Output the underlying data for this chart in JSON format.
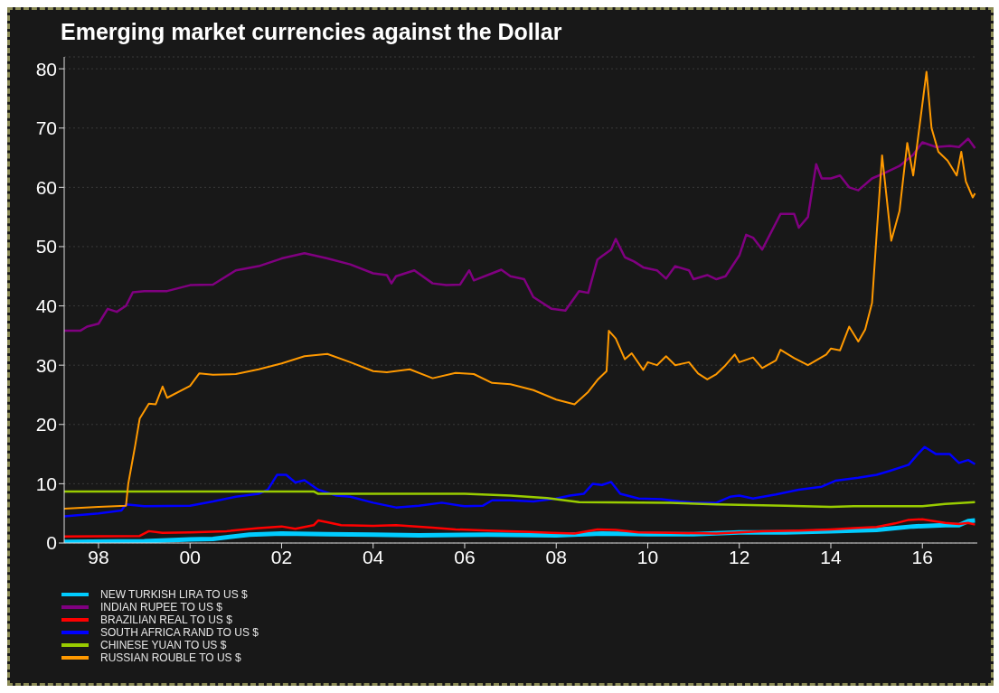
{
  "chart_data": {
    "type": "line",
    "title": "Emerging market currencies against the Dollar",
    "xlim": [
      1997.25,
      2017.2
    ],
    "xticks": [
      {
        "value": 1998,
        "label": "98"
      },
      {
        "value": 2000,
        "label": "00"
      },
      {
        "value": 2002,
        "label": "02"
      },
      {
        "value": 2004,
        "label": "04"
      },
      {
        "value": 2006,
        "label": "06"
      },
      {
        "value": 2008,
        "label": "08"
      },
      {
        "value": 2010,
        "label": "10"
      },
      {
        "value": 2012,
        "label": "12"
      },
      {
        "value": 2014,
        "label": "14"
      },
      {
        "value": 2016,
        "label": "16"
      }
    ],
    "ylim": [
      0,
      82
    ],
    "yticks": [
      0,
      10,
      20,
      30,
      40,
      50,
      60,
      70,
      80
    ],
    "grid": "y",
    "legend": "bottom left",
    "marker": "none",
    "line_style": "solid",
    "series": [
      {
        "name": "NEW TURKISH LIRA TO US $",
        "color": "#00ccff",
        "x": [
          1997.25,
          1999.0,
          2000.0,
          2000.5,
          2001.3,
          2002.0,
          2003.0,
          2004.0,
          2005.0,
          2006.5,
          2008.0,
          2009.0,
          2010.0,
          2011.0,
          2012.0,
          2013.0,
          2014.0,
          2015.0,
          2015.8,
          2016.5,
          2016.8,
          2017.0,
          2017.15
        ],
        "values": [
          0.2,
          0.3,
          0.6,
          0.7,
          1.4,
          1.6,
          1.5,
          1.4,
          1.3,
          1.4,
          1.3,
          1.6,
          1.5,
          1.5,
          1.8,
          1.8,
          2.0,
          2.2,
          2.8,
          3.0,
          3.0,
          3.7,
          3.8
        ]
      },
      {
        "name": "INDIAN RUPEE TO US $",
        "color": "#800080",
        "x": [
          1997.25,
          1997.6,
          1997.75,
          1998.0,
          1998.2,
          1998.4,
          1998.6,
          1998.75,
          1999.0,
          1999.5,
          2000.0,
          2000.5,
          2001.0,
          2001.5,
          2002.0,
          2002.5,
          2003.0,
          2003.5,
          2004.0,
          2004.3,
          2004.4,
          2004.5,
          2004.9,
          2005.3,
          2005.6,
          2005.9,
          2006.1,
          2006.2,
          2006.6,
          2006.8,
          2007.0,
          2007.3,
          2007.5,
          2007.9,
          2008.2,
          2008.5,
          2008.7,
          2008.9,
          2009.0,
          2009.2,
          2009.3,
          2009.5,
          2009.7,
          2009.9,
          2010.2,
          2010.4,
          2010.6,
          2010.9,
          2011.0,
          2011.3,
          2011.5,
          2011.7,
          2012.0,
          2012.15,
          2012.3,
          2012.5,
          2012.8,
          2012.9,
          2013.2,
          2013.3,
          2013.5,
          2013.68,
          2013.8,
          2014.0,
          2014.2,
          2014.4,
          2014.6,
          2014.9,
          2015.2,
          2015.5,
          2015.8,
          2016.0,
          2016.3,
          2016.6,
          2016.8,
          2017.0,
          2017.15
        ],
        "values": [
          35.8,
          35.8,
          36.5,
          37,
          39.5,
          39,
          40,
          42.3,
          42.5,
          42.5,
          43.5,
          43.6,
          46,
          46.7,
          48,
          48.9,
          48,
          47,
          45.5,
          45.2,
          43.8,
          45,
          46,
          43.8,
          43.5,
          43.6,
          46,
          44.3,
          45.5,
          46.1,
          45,
          44.5,
          41.5,
          39.5,
          39.2,
          42.5,
          42.2,
          47.8,
          48.4,
          49.5,
          51.3,
          48.2,
          47.5,
          46.5,
          46,
          44.6,
          46.7,
          46,
          44.5,
          45.2,
          44.5,
          45,
          48.5,
          52,
          51.5,
          49.5,
          54,
          55.5,
          55.5,
          53.2,
          55,
          63.9,
          61.5,
          61.5,
          62,
          60,
          59.5,
          61.5,
          62.5,
          63.6,
          65.5,
          67.6,
          66.8,
          67,
          66.8,
          68.2,
          66.6
        ]
      },
      {
        "name": "BRAZILIAN REAL TO US $",
        "color": "#ff0000",
        "x": [
          1997.25,
          1998.9,
          1999.1,
          1999.4,
          2000.0,
          2000.8,
          2001.5,
          2002.0,
          2002.3,
          2002.7,
          2002.8,
          2003.0,
          2003.3,
          2004.0,
          2004.5,
          2005.3,
          2005.8,
          2006.5,
          2007.3,
          2007.9,
          2008.4,
          2008.9,
          2009.3,
          2009.8,
          2010.5,
          2011.5,
          2012.0,
          2012.5,
          2013.3,
          2014.0,
          2014.5,
          2015.0,
          2015.4,
          2015.7,
          2016.0,
          2016.5,
          2016.8,
          2017.0,
          2017.15
        ],
        "values": [
          1.1,
          1.2,
          2.0,
          1.7,
          1.8,
          2.0,
          2.5,
          2.8,
          2.4,
          3.0,
          3.8,
          3.5,
          3.0,
          2.9,
          3.0,
          2.6,
          2.3,
          2.1,
          1.9,
          1.7,
          1.6,
          2.3,
          2.2,
          1.8,
          1.7,
          1.6,
          1.8,
          2.0,
          2.1,
          2.3,
          2.5,
          2.7,
          3.3,
          3.9,
          4.0,
          3.4,
          3.2,
          3.4,
          3.1
        ]
      },
      {
        "name": "SOUTH AFRICA RAND TO US $",
        "color": "#0000ff",
        "x": [
          1997.25,
          1998.0,
          1998.5,
          1998.6,
          1999.0,
          2000.0,
          2000.5,
          2001.0,
          2001.5,
          2001.7,
          2001.9,
          2002.1,
          2002.3,
          2002.5,
          2002.8,
          2003.2,
          2003.5,
          2004.0,
          2004.5,
          2005.0,
          2005.5,
          2006.0,
          2006.4,
          2006.6,
          2007.0,
          2007.5,
          2008.0,
          2008.3,
          2008.6,
          2008.8,
          2009.0,
          2009.2,
          2009.4,
          2009.8,
          2010.3,
          2010.7,
          2011.0,
          2011.5,
          2011.8,
          2012.0,
          2012.3,
          2012.8,
          2013.3,
          2013.8,
          2014.1,
          2014.6,
          2015.0,
          2015.3,
          2015.7,
          2015.9,
          2016.05,
          2016.3,
          2016.6,
          2016.8,
          2017.0,
          2017.15
        ],
        "values": [
          4.5,
          5.0,
          5.5,
          6.5,
          6.2,
          6.3,
          7.0,
          7.8,
          8.3,
          9.0,
          11.5,
          11.5,
          10.2,
          10.6,
          9.0,
          8.0,
          7.8,
          6.8,
          6.0,
          6.3,
          6.8,
          6.2,
          6.3,
          7.2,
          7.2,
          7.0,
          7.5,
          8.0,
          8.3,
          10.0,
          9.8,
          10.3,
          8.3,
          7.5,
          7.4,
          7.0,
          6.8,
          6.8,
          7.8,
          8.0,
          7.5,
          8.2,
          9.0,
          9.5,
          10.5,
          11.0,
          11.5,
          12.2,
          13.2,
          15.0,
          16.2,
          15.0,
          15.0,
          13.5,
          14.0,
          13.3
        ]
      },
      {
        "name": "CHINESE YUAN TO US $",
        "color": "#99cc00",
        "x": [
          1997.25,
          2002.7,
          2002.8,
          2006.0,
          2007.0,
          2007.8,
          2008.5,
          2010.5,
          2011.5,
          2013.0,
          2014.0,
          2014.5,
          2016.0,
          2016.5,
          2017.15
        ],
        "values": [
          8.7,
          8.7,
          8.3,
          8.3,
          8.0,
          7.6,
          6.9,
          6.8,
          6.5,
          6.3,
          6.1,
          6.2,
          6.2,
          6.6,
          6.9
        ]
      },
      {
        "name": "RUSSIAN ROUBLE TO US $",
        "color": "#ff9900",
        "x": [
          1997.25,
          1998.0,
          1998.6,
          1998.65,
          1998.8,
          1998.9,
          1999.1,
          1999.25,
          1999.4,
          1999.5,
          2000.0,
          2000.2,
          2000.5,
          2001.0,
          2001.5,
          2002.0,
          2002.5,
          2003.0,
          2003.5,
          2004.0,
          2004.3,
          2004.8,
          2005.3,
          2005.8,
          2006.2,
          2006.6,
          2007.0,
          2007.5,
          2008.0,
          2008.4,
          2008.7,
          2008.9,
          2009.1,
          2009.15,
          2009.3,
          2009.5,
          2009.65,
          2009.9,
          2010.0,
          2010.2,
          2010.4,
          2010.6,
          2010.9,
          2011.1,
          2011.3,
          2011.5,
          2011.7,
          2011.9,
          2012.0,
          2012.3,
          2012.5,
          2012.8,
          2012.9,
          2013.2,
          2013.5,
          2013.9,
          2014.0,
          2014.2,
          2014.4,
          2014.6,
          2014.75,
          2014.9,
          2015.0,
          2015.12,
          2015.32,
          2015.5,
          2015.67,
          2015.8,
          2016.09,
          2016.2,
          2016.35,
          2016.55,
          2016.75,
          2016.85,
          2016.95,
          2017.1,
          2017.15
        ],
        "values": [
          5.8,
          6.1,
          6.3,
          10,
          16.4,
          21,
          23.5,
          23.4,
          26.4,
          24.5,
          26.5,
          28.6,
          28.4,
          28.5,
          29.3,
          30.3,
          31.5,
          31.9,
          30.5,
          29,
          28.8,
          29.3,
          27.8,
          28.7,
          28.5,
          27,
          26.8,
          25.8,
          24.2,
          23.4,
          25.5,
          27.5,
          29,
          35.8,
          34.5,
          31,
          32,
          29.2,
          30.5,
          30,
          31.5,
          30,
          30.5,
          28.6,
          27.6,
          28.5,
          30,
          31.8,
          30.5,
          31.3,
          29.5,
          30.8,
          32.6,
          31.2,
          30.0,
          31.8,
          32.8,
          32.5,
          36.5,
          34,
          36,
          40.5,
          52,
          65.4,
          51,
          56,
          67.5,
          62,
          79.5,
          70,
          66,
          64.5,
          62,
          66,
          61,
          58.3,
          59
        ]
      }
    ]
  }
}
